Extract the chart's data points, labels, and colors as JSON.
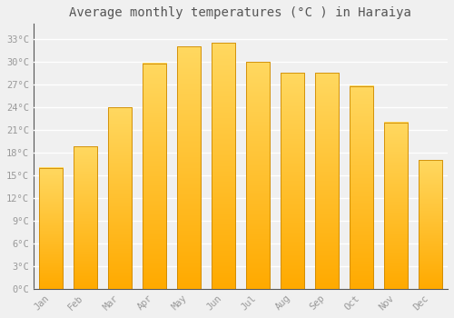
{
  "title": "Average monthly temperatures (°C ) in Haraiya",
  "months": [
    "Jan",
    "Feb",
    "Mar",
    "Apr",
    "May",
    "Jun",
    "Jul",
    "Aug",
    "Sep",
    "Oct",
    "Nov",
    "Dec"
  ],
  "values": [
    16.0,
    18.8,
    24.0,
    29.8,
    32.0,
    32.5,
    30.0,
    28.5,
    28.5,
    26.8,
    22.0,
    17.0
  ],
  "bar_grad_bottom": "#FFAA00",
  "bar_grad_top": "#FFD860",
  "bar_edge_color": "#CC8800",
  "ytick_labels": [
    "0°C",
    "3°C",
    "6°C",
    "9°C",
    "12°C",
    "15°C",
    "18°C",
    "21°C",
    "24°C",
    "27°C",
    "30°C",
    "33°C"
  ],
  "ytick_values": [
    0,
    3,
    6,
    9,
    12,
    15,
    18,
    21,
    24,
    27,
    30,
    33
  ],
  "ylim": [
    0,
    35
  ],
  "background_color": "#f0f0f0",
  "grid_color": "#ffffff",
  "title_fontsize": 10,
  "tick_fontsize": 7.5,
  "tick_color": "#999999",
  "spine_color": "#555555",
  "font_family": "monospace"
}
